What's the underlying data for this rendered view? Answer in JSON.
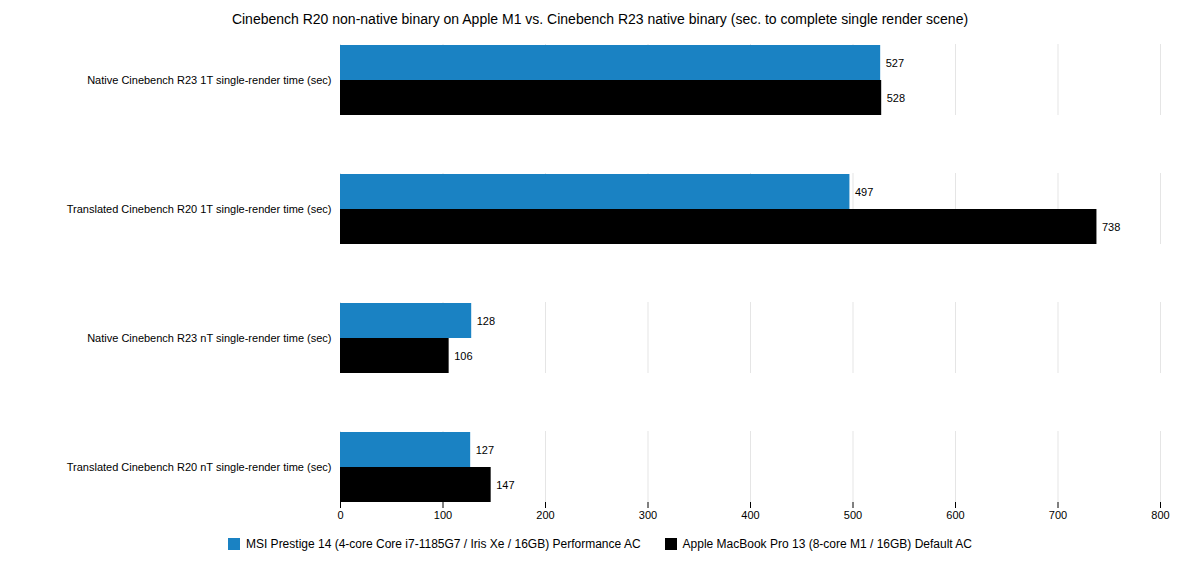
{
  "chart_data": {
    "type": "bar",
    "orientation": "horizontal",
    "title": "Cinebench R20 non-native binary on Apple M1 vs. Cinebench R23 native binary (sec. to complete single render scene)",
    "categories": [
      "Native Cinebench R23 1T single-render time (sec)",
      "Translated Cinebench R20 1T single-render time (sec)",
      "Native Cinebench R23 nT single-render time (sec)",
      "Translated Cinebench R20 nT single-render time (sec)"
    ],
    "series": [
      {
        "name": "MSI Prestige 14 (4-core Core i7-1185G7 / Iris Xe / 16GB) Performance AC",
        "color": "#1a82c3",
        "values": [
          527,
          497,
          128,
          127
        ]
      },
      {
        "name": "Apple MacBook Pro 13 (8-core M1 / 16GB) Default AC",
        "color": "#000000",
        "values": [
          528,
          738,
          106,
          147
        ]
      }
    ],
    "xlim": [
      0,
      800
    ],
    "xticks": [
      0,
      100,
      200,
      300,
      400,
      500,
      600,
      700,
      800
    ],
    "grid": true,
    "data_labels": true,
    "legend": "bottom"
  }
}
